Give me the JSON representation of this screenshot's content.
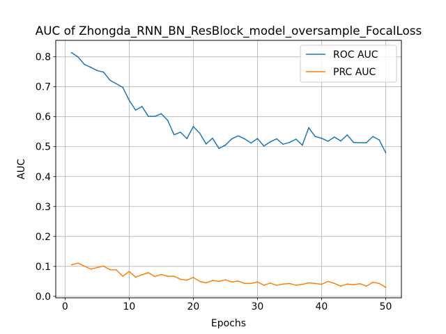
{
  "chart_data": {
    "type": "line",
    "title": "AUC of Zhongda_RNN_BN_ResBlock_model_oversample_FocalLoss",
    "xlabel": "Epochs",
    "ylabel": "AUC",
    "xlim": [
      -1.45,
      52.45
    ],
    "ylim": [
      -0.005,
      0.855
    ],
    "xticks": [
      0,
      10,
      20,
      30,
      40,
      50
    ],
    "yticks": [
      0.0,
      0.1,
      0.2,
      0.3,
      0.4,
      0.5,
      0.6,
      0.7,
      0.8
    ],
    "xtick_labels": [
      "0",
      "10",
      "20",
      "30",
      "40",
      "50"
    ],
    "ytick_labels": [
      "0.0",
      "0.1",
      "0.2",
      "0.3",
      "0.4",
      "0.5",
      "0.6",
      "0.7",
      "0.8"
    ],
    "grid": true,
    "legend_position": "top-right",
    "x": [
      1,
      2,
      3,
      4,
      5,
      6,
      7,
      8,
      9,
      10,
      11,
      12,
      13,
      14,
      15,
      16,
      17,
      18,
      19,
      20,
      21,
      22,
      23,
      24,
      25,
      26,
      27,
      28,
      29,
      30,
      31,
      32,
      33,
      34,
      35,
      36,
      37,
      38,
      39,
      40,
      41,
      42,
      43,
      44,
      45,
      46,
      47,
      48,
      49,
      50
    ],
    "series": [
      {
        "name": "ROC AUC",
        "color": "#1f77b4",
        "values": [
          0.814,
          0.8,
          0.775,
          0.765,
          0.754,
          0.749,
          0.722,
          0.71,
          0.698,
          0.655,
          0.622,
          0.634,
          0.601,
          0.601,
          0.61,
          0.588,
          0.54,
          0.548,
          0.527,
          0.567,
          0.545,
          0.509,
          0.528,
          0.494,
          0.505,
          0.526,
          0.536,
          0.526,
          0.512,
          0.527,
          0.502,
          0.516,
          0.526,
          0.508,
          0.514,
          0.525,
          0.505,
          0.563,
          0.534,
          0.528,
          0.518,
          0.532,
          0.519,
          0.539,
          0.514,
          0.513,
          0.513,
          0.534,
          0.522,
          0.48
        ]
      },
      {
        "name": "PRC AUC",
        "color": "#ff7f0e",
        "values": [
          0.105,
          0.111,
          0.101,
          0.091,
          0.096,
          0.101,
          0.089,
          0.088,
          0.067,
          0.083,
          0.064,
          0.072,
          0.079,
          0.066,
          0.073,
          0.067,
          0.067,
          0.057,
          0.054,
          0.063,
          0.05,
          0.045,
          0.053,
          0.05,
          0.055,
          0.048,
          0.051,
          0.043,
          0.043,
          0.048,
          0.037,
          0.044,
          0.037,
          0.041,
          0.043,
          0.037,
          0.04,
          0.045,
          0.043,
          0.04,
          0.05,
          0.043,
          0.034,
          0.041,
          0.039,
          0.042,
          0.034,
          0.047,
          0.043,
          0.03
        ]
      }
    ]
  }
}
